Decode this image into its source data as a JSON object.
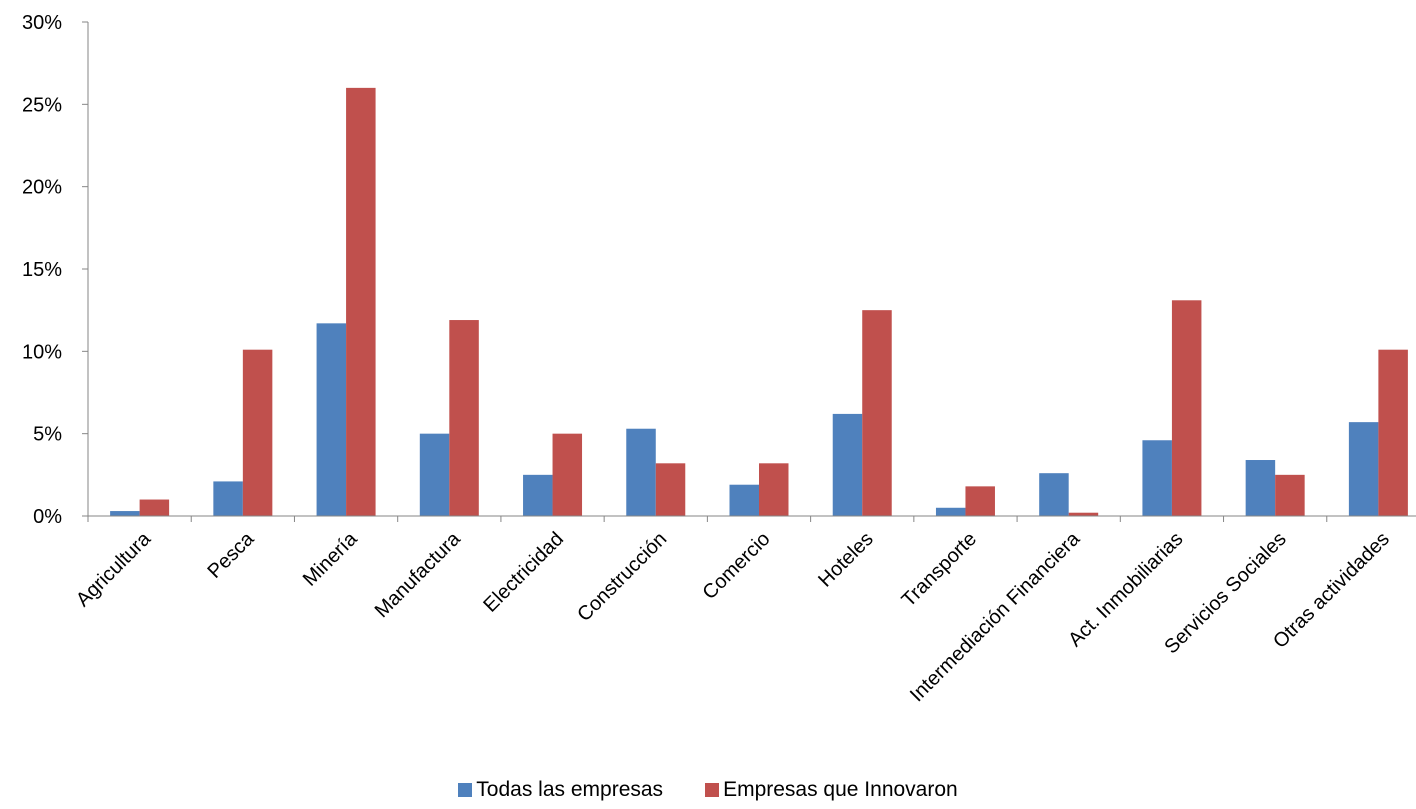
{
  "chart_data": {
    "type": "bar",
    "categories": [
      "Agricultura",
      "Pesca",
      "Minería",
      "Manufactura",
      "Electricidad",
      "Construcción",
      "Comercio",
      "Hoteles",
      "Transporte",
      "Intermediación Financiera",
      "Act. Inmobiliarias",
      "Servicios Sociales",
      "Otras actividades"
    ],
    "series": [
      {
        "name": "Todas las empresas",
        "color": "#4F81BD",
        "values": [
          0.3,
          2.1,
          11.7,
          5.0,
          2.5,
          5.3,
          1.9,
          6.2,
          0.5,
          2.6,
          4.6,
          3.4,
          5.7
        ]
      },
      {
        "name": "Empresas que Innovaron",
        "color": "#C0504D",
        "values": [
          1.0,
          10.1,
          26.0,
          11.9,
          5.0,
          3.2,
          3.2,
          12.5,
          1.8,
          0.2,
          13.1,
          2.5,
          10.1
        ]
      }
    ],
    "ylim": [
      0,
      30
    ],
    "yticks": [
      "0%",
      "5%",
      "10%",
      "15%",
      "20%",
      "25%",
      "30%"
    ],
    "ytick_values": [
      0,
      5,
      10,
      15,
      20,
      25,
      30
    ],
    "legend_position": "bottom",
    "grid": false
  }
}
